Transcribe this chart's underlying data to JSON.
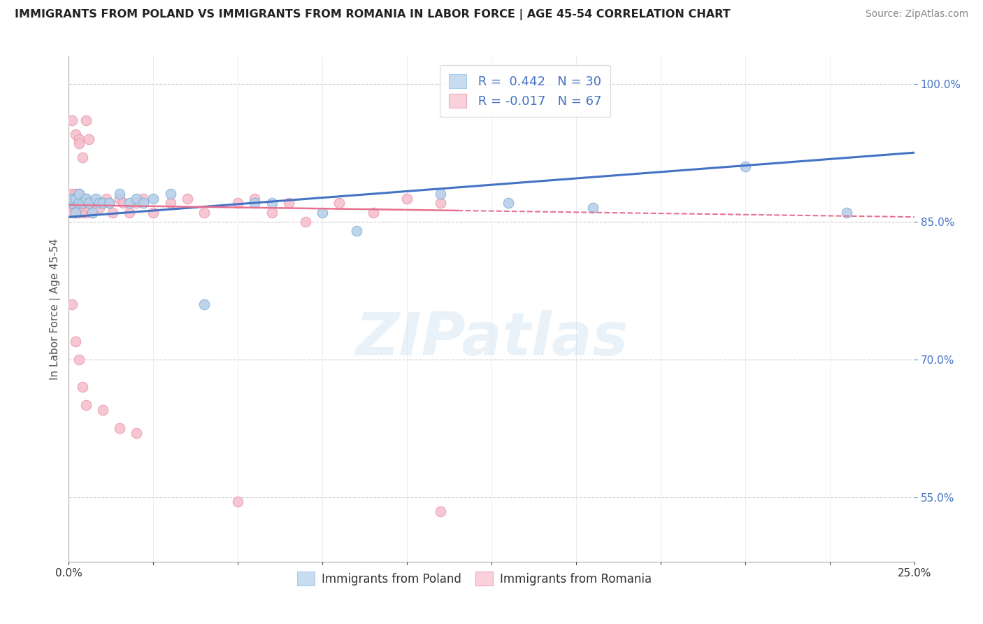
{
  "title": "IMMIGRANTS FROM POLAND VS IMMIGRANTS FROM ROMANIA IN LABOR FORCE | AGE 45-54 CORRELATION CHART",
  "source": "Source: ZipAtlas.com",
  "ylabel": "In Labor Force | Age 45-54",
  "xlim": [
    0.0,
    0.25
  ],
  "ylim": [
    0.48,
    1.03
  ],
  "yticks": [
    0.55,
    0.7,
    0.85,
    1.0
  ],
  "ytick_labels": [
    "55.0%",
    "70.0%",
    "85.0%",
    "100.0%"
  ],
  "xticks": [
    0.0,
    0.025,
    0.05,
    0.075,
    0.1,
    0.125,
    0.15,
    0.175,
    0.2,
    0.225,
    0.25
  ],
  "xtick_labels": [
    "0.0%",
    "",
    "",
    "",
    "",
    "",
    "",
    "",
    "",
    "",
    "25.0%"
  ],
  "xticks_labeled": [
    0.0,
    0.25
  ],
  "xtick_labels_labeled": [
    "0.0%",
    "25.0%"
  ],
  "poland_color": "#b8d0ea",
  "poland_edge": "#7aafd4",
  "romania_color": "#f5c0ce",
  "romania_edge": "#e896aa",
  "trend_poland_color": "#4472c4",
  "trend_romania_color": "#e87090",
  "R_poland": 0.442,
  "N_poland": 30,
  "R_romania": -0.017,
  "N_romania": 67,
  "legend_color_poland": "#c8dcf0",
  "legend_color_romania": "#fad0dc",
  "watermark": "ZIPatlas",
  "poland_x": [
    0.001,
    0.001,
    0.002,
    0.002,
    0.003,
    0.003,
    0.004,
    0.005,
    0.006,
    0.007,
    0.008,
    0.009,
    0.01,
    0.012,
    0.015,
    0.018,
    0.02,
    0.022,
    0.025,
    0.03,
    0.04,
    0.055,
    0.06,
    0.075,
    0.085,
    0.11,
    0.13,
    0.155,
    0.2,
    0.23
  ],
  "poland_y": [
    0.87,
    0.875,
    0.86,
    0.875,
    0.87,
    0.88,
    0.87,
    0.875,
    0.87,
    0.86,
    0.875,
    0.87,
    0.87,
    0.87,
    0.88,
    0.87,
    0.875,
    0.87,
    0.875,
    0.88,
    0.76,
    0.87,
    0.87,
    0.86,
    0.84,
    0.88,
    0.87,
    0.865,
    0.91,
    0.86
  ],
  "romania_x": [
    0.001,
    0.001,
    0.001,
    0.001,
    0.001,
    0.001,
    0.002,
    0.002,
    0.002,
    0.002,
    0.002,
    0.003,
    0.003,
    0.003,
    0.003,
    0.003,
    0.004,
    0.004,
    0.004,
    0.004,
    0.005,
    0.005,
    0.006,
    0.006,
    0.007,
    0.007,
    0.008,
    0.009,
    0.01,
    0.011,
    0.012,
    0.013,
    0.015,
    0.016,
    0.018,
    0.02,
    0.022,
    0.025,
    0.03,
    0.035,
    0.04,
    0.05,
    0.055,
    0.06,
    0.065,
    0.07,
    0.08,
    0.09,
    0.1,
    0.11,
    0.001,
    0.002,
    0.003,
    0.003,
    0.004,
    0.005,
    0.006,
    0.001,
    0.002,
    0.003,
    0.004,
    0.005,
    0.01,
    0.015,
    0.02,
    0.05,
    0.11
  ],
  "romania_y": [
    0.87,
    0.865,
    0.86,
    0.875,
    0.88,
    0.87,
    0.87,
    0.865,
    0.875,
    0.86,
    0.88,
    0.87,
    0.865,
    0.875,
    0.86,
    0.88,
    0.87,
    0.875,
    0.86,
    0.87,
    0.875,
    0.86,
    0.87,
    0.865,
    0.87,
    0.86,
    0.87,
    0.865,
    0.87,
    0.875,
    0.87,
    0.86,
    0.875,
    0.87,
    0.86,
    0.87,
    0.875,
    0.86,
    0.87,
    0.875,
    0.86,
    0.87,
    0.875,
    0.86,
    0.87,
    0.85,
    0.87,
    0.86,
    0.875,
    0.87,
    0.96,
    0.945,
    0.94,
    0.935,
    0.92,
    0.96,
    0.94,
    0.76,
    0.72,
    0.7,
    0.67,
    0.65,
    0.645,
    0.625,
    0.62,
    0.545,
    0.535
  ]
}
